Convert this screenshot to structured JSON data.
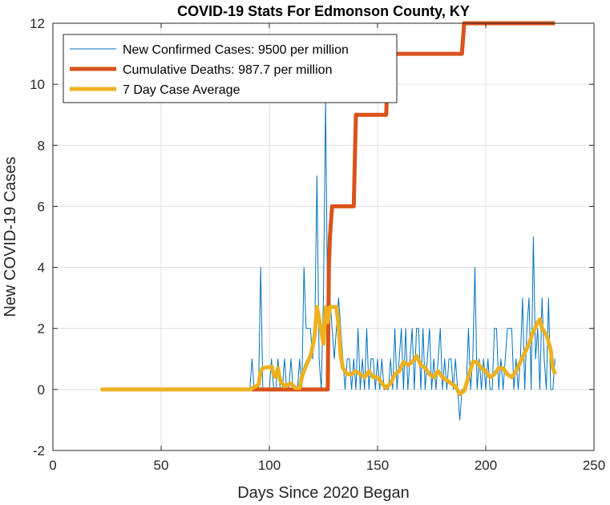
{
  "chart_data": {
    "type": "line",
    "title": "COVID-19 Stats For Edmonson County, KY",
    "xlabel": "Days Since 2020 Began",
    "ylabel": "New COVID-19 Cases",
    "xlim": [
      0,
      250
    ],
    "ylim": [
      -2,
      12
    ],
    "xticks": [
      0,
      50,
      100,
      150,
      200,
      250
    ],
    "yticks": [
      -2,
      0,
      2,
      4,
      6,
      8,
      10,
      12
    ],
    "grid": true,
    "legend_position": "top-left",
    "series": [
      {
        "name": "New Confirmed Cases: 9500 per million",
        "color": "#0072BD",
        "style": "thin",
        "points": [
          [
            22,
            0
          ],
          [
            91,
            0
          ],
          [
            92,
            1
          ],
          [
            93,
            0
          ],
          [
            95,
            0
          ],
          [
            96,
            4
          ],
          [
            97,
            0
          ],
          [
            100,
            0
          ],
          [
            101,
            1
          ],
          [
            102,
            0
          ],
          [
            103,
            0
          ],
          [
            104,
            1
          ],
          [
            105,
            0
          ],
          [
            106,
            0
          ],
          [
            107,
            1
          ],
          [
            108,
            0
          ],
          [
            109,
            0
          ],
          [
            110,
            1
          ],
          [
            111,
            0
          ],
          [
            112,
            0
          ],
          [
            113,
            0
          ],
          [
            114,
            1
          ],
          [
            115,
            0
          ],
          [
            116,
            4
          ],
          [
            117,
            2
          ],
          [
            118,
            2
          ],
          [
            119,
            2
          ],
          [
            120,
            1
          ],
          [
            121,
            2
          ],
          [
            122,
            7
          ],
          [
            123,
            1
          ],
          [
            124,
            0
          ],
          [
            125,
            3
          ],
          [
            126,
            9.5
          ],
          [
            127,
            2
          ],
          [
            128,
            3
          ],
          [
            129,
            2
          ],
          [
            130,
            1
          ],
          [
            131,
            2
          ],
          [
            132,
            3
          ],
          [
            133,
            2
          ],
          [
            134,
            1
          ],
          [
            135,
            0
          ],
          [
            136,
            1
          ],
          [
            137,
            1
          ],
          [
            138,
            0
          ],
          [
            139,
            1
          ],
          [
            140,
            0
          ],
          [
            141,
            2
          ],
          [
            142,
            0
          ],
          [
            143,
            1
          ],
          [
            144,
            0
          ],
          [
            145,
            2
          ],
          [
            146,
            0
          ],
          [
            147,
            1
          ],
          [
            148,
            1
          ],
          [
            149,
            0
          ],
          [
            150,
            1
          ],
          [
            151,
            0
          ],
          [
            152,
            1
          ],
          [
            153,
            0
          ],
          [
            154,
            0
          ],
          [
            155,
            0
          ],
          [
            156,
            1
          ],
          [
            157,
            0
          ],
          [
            158,
            2
          ],
          [
            159,
            0
          ],
          [
            160,
            1
          ],
          [
            161,
            2
          ],
          [
            162,
            0
          ],
          [
            163,
            2
          ],
          [
            164,
            0
          ],
          [
            165,
            1
          ],
          [
            166,
            2
          ],
          [
            167,
            0
          ],
          [
            168,
            2
          ],
          [
            169,
            2
          ],
          [
            170,
            0
          ],
          [
            171,
            2
          ],
          [
            172,
            0
          ],
          [
            173,
            1
          ],
          [
            174,
            2
          ],
          [
            175,
            0
          ],
          [
            176,
            1
          ],
          [
            177,
            0
          ],
          [
            178,
            1
          ],
          [
            179,
            2
          ],
          [
            180,
            0
          ],
          [
            181,
            1
          ],
          [
            182,
            0
          ],
          [
            183,
            1
          ],
          [
            184,
            1
          ],
          [
            185,
            0
          ],
          [
            186,
            1
          ],
          [
            187,
            0
          ],
          [
            188,
            -1
          ],
          [
            189,
            0
          ],
          [
            190,
            0
          ],
          [
            191,
            0
          ],
          [
            192,
            2
          ],
          [
            193,
            0
          ],
          [
            194,
            1
          ],
          [
            195,
            4
          ],
          [
            196,
            0
          ],
          [
            197,
            1
          ],
          [
            198,
            0
          ],
          [
            199,
            1
          ],
          [
            200,
            0
          ],
          [
            201,
            1
          ],
          [
            202,
            0
          ],
          [
            203,
            0
          ],
          [
            204,
            2
          ],
          [
            205,
            2
          ],
          [
            206,
            0
          ],
          [
            207,
            1
          ],
          [
            208,
            0
          ],
          [
            209,
            1
          ],
          [
            210,
            2
          ],
          [
            211,
            2
          ],
          [
            212,
            2
          ],
          [
            213,
            0
          ],
          [
            214,
            1
          ],
          [
            215,
            0
          ],
          [
            216,
            1
          ],
          [
            217,
            3
          ],
          [
            218,
            0
          ],
          [
            219,
            2
          ],
          [
            220,
            3
          ],
          [
            221,
            0
          ],
          [
            222,
            5
          ],
          [
            223,
            1
          ],
          [
            224,
            2
          ],
          [
            225,
            0
          ],
          [
            226,
            3
          ],
          [
            227,
            1
          ],
          [
            228,
            0
          ],
          [
            229,
            3
          ],
          [
            230,
            0
          ],
          [
            231,
            0
          ],
          [
            232,
            1
          ]
        ]
      },
      {
        "name": "Cumulative Deaths: 987.7 per million",
        "color": "#D95319",
        "style": "thick",
        "points": [
          [
            92,
            0
          ],
          [
            127,
            0
          ],
          [
            127.5,
            4
          ],
          [
            128,
            5
          ],
          [
            129,
            6
          ],
          [
            139,
            6
          ],
          [
            140,
            9
          ],
          [
            154,
            9
          ],
          [
            155,
            11
          ],
          [
            189,
            11
          ],
          [
            190,
            12
          ],
          [
            232,
            12
          ]
        ]
      },
      {
        "name": "7 Day Case Average",
        "color": "#EDB120",
        "style": "thick",
        "points": [
          [
            22,
            0
          ],
          [
            91,
            0
          ],
          [
            95,
            0.15
          ],
          [
            96,
            0.6
          ],
          [
            97,
            0.7
          ],
          [
            101,
            0.75
          ],
          [
            102,
            0.5
          ],
          [
            103,
            0.4
          ],
          [
            104,
            0.7
          ],
          [
            105,
            0.3
          ],
          [
            107,
            0.1
          ],
          [
            110,
            0.2
          ],
          [
            112,
            0.05
          ],
          [
            114,
            0.05
          ],
          [
            115,
            0.4
          ],
          [
            117,
            0.8
          ],
          [
            119,
            1.1
          ],
          [
            120,
            1.4
          ],
          [
            121,
            1.8
          ],
          [
            122,
            2.7
          ],
          [
            123,
            2.3
          ],
          [
            124,
            1.9
          ],
          [
            125,
            1.5
          ],
          [
            126,
            2.7
          ],
          [
            127,
            2.2
          ],
          [
            128,
            2.7
          ],
          [
            131,
            2.7
          ],
          [
            132,
            2.1
          ],
          [
            133,
            1.1
          ],
          [
            134,
            0.7
          ],
          [
            136,
            0.5
          ],
          [
            138,
            0.5
          ],
          [
            140,
            0.6
          ],
          [
            142,
            0.5
          ],
          [
            144,
            0.4
          ],
          [
            146,
            0.6
          ],
          [
            148,
            0.4
          ],
          [
            150,
            0.4
          ],
          [
            152,
            0.2
          ],
          [
            154,
            0.05
          ],
          [
            156,
            0.2
          ],
          [
            158,
            0.5
          ],
          [
            160,
            0.6
          ],
          [
            162,
            0.9
          ],
          [
            164,
            0.8
          ],
          [
            166,
            0.9
          ],
          [
            168,
            1.1
          ],
          [
            170,
            0.8
          ],
          [
            172,
            0.7
          ],
          [
            174,
            0.5
          ],
          [
            176,
            0.4
          ],
          [
            178,
            0.6
          ],
          [
            180,
            0.4
          ],
          [
            182,
            0.3
          ],
          [
            184,
            0.2
          ],
          [
            186,
            0.1
          ],
          [
            188,
            -0.15
          ],
          [
            190,
            -0.05
          ],
          [
            192,
            0.4
          ],
          [
            194,
            0.9
          ],
          [
            196,
            0.9
          ],
          [
            198,
            0.7
          ],
          [
            200,
            0.6
          ],
          [
            202,
            0.4
          ],
          [
            204,
            0.5
          ],
          [
            206,
            0.7
          ],
          [
            208,
            0.7
          ],
          [
            210,
            0.5
          ],
          [
            212,
            0.4
          ],
          [
            214,
            0.6
          ],
          [
            216,
            0.9
          ],
          [
            218,
            1.2
          ],
          [
            220,
            1.5
          ],
          [
            222,
            1.9
          ],
          [
            224,
            2.2
          ],
          [
            225,
            2.3
          ],
          [
            226,
            2.0
          ],
          [
            228,
            1.8
          ],
          [
            230,
            1.3
          ],
          [
            231,
            0.7
          ],
          [
            232,
            0.5
          ]
        ]
      }
    ]
  }
}
